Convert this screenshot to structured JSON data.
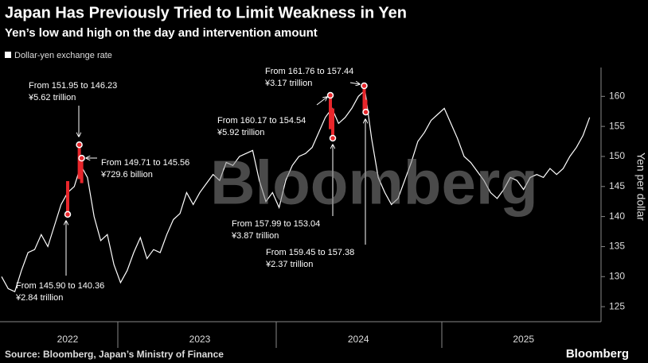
{
  "chart_data": {
    "type": "line",
    "title": "Japan Has Previously Tried to Limit Weakness in Yen",
    "subtitle": "Yen’s low and high on the day and intervention amount",
    "y_axis_label": "Yen per dollar",
    "source": "Source: Bloomberg, Japan’s Ministry of Finance",
    "brand": "Bloomberg",
    "watermark": "Bloomberg",
    "legend": "top-left",
    "categories": [
      null,
      null,
      null,
      null,
      null,
      null,
      null,
      null,
      null,
      null,
      "2022",
      null,
      null,
      null,
      null,
      null,
      null,
      null,
      null,
      null,
      null,
      null,
      null,
      null,
      null,
      null,
      null,
      null,
      null,
      null,
      "2023",
      null,
      null,
      null,
      null,
      null,
      null,
      null,
      null,
      null,
      null,
      null,
      null,
      null,
      null,
      null,
      null,
      null,
      null,
      null,
      null,
      null,
      null,
      null,
      "2024",
      null,
      null,
      null,
      null,
      null,
      null,
      null,
      null,
      null,
      null,
      null,
      null,
      null,
      null,
      null,
      null,
      null,
      null,
      null,
      null,
      null,
      null,
      null,
      null,
      "2025",
      null,
      null,
      null,
      null,
      null,
      null,
      null,
      null,
      null,
      null
    ],
    "series": [
      {
        "name": "Dollar-yen exchange rate",
        "color": "#ffffff",
        "values": [
          130,
          128,
          127.5,
          131,
          134,
          134.5,
          137,
          135,
          138.5,
          142,
          144,
          145,
          148.5,
          146.5,
          140,
          136,
          137,
          132,
          129,
          131,
          134,
          136.5,
          133,
          134.5,
          134,
          137,
          139.5,
          140.5,
          144,
          142,
          144,
          145.5,
          147,
          146,
          149,
          148.5,
          150,
          150.5,
          151,
          146,
          142.5,
          144,
          141.5,
          146,
          148.5,
          150,
          150.5,
          151.5,
          154,
          156.5,
          158,
          155.5,
          156.5,
          158,
          160,
          161,
          153,
          146.5,
          144,
          142,
          143,
          146,
          149,
          152.5,
          154,
          156,
          157,
          158,
          155.5,
          153,
          150,
          149,
          147.5,
          146,
          144,
          143,
          144.5,
          146.5,
          146,
          144.5,
          146.5,
          147,
          146.5,
          148,
          147,
          148,
          150,
          151.5,
          153.5,
          156.5
        ]
      }
    ],
    "interventions": [
      {
        "at": 10,
        "high": 145.9,
        "low": 140.36,
        "color": "#e8262b",
        "text": "From 145.90 to 140.36",
        "amount": "¥2.84 trillion"
      },
      {
        "at": 12,
        "high": 151.95,
        "low": 146.23,
        "color": "#e8262b",
        "text": "From 151.95 to 146.23",
        "amount": "¥5.62 trillion"
      },
      {
        "at": 12,
        "high": 149.71,
        "low": 145.56,
        "color": "#e8262b",
        "text": "From 149.71 to 145.56",
        "amount": "¥729.6 billion"
      },
      {
        "at": 50,
        "high": 160.17,
        "low": 154.54,
        "color": "#e8262b",
        "text": "From 160.17 to 154.54",
        "amount": "¥5.92 trillion"
      },
      {
        "at": 50,
        "high": 157.99,
        "low": 153.04,
        "color": "#e8262b",
        "text": "From 157.99 to 153.04",
        "amount": "¥3.87 trillion"
      },
      {
        "at": 55,
        "high": 161.76,
        "low": 157.44,
        "color": "#e8262b",
        "text": "From 161.76 to 157.44",
        "amount": "¥3.17 trillion"
      },
      {
        "at": 55,
        "high": 159.45,
        "low": 157.38,
        "color": "#e8262b",
        "text": "From 159.45 to 157.38",
        "amount": "¥2.37 trillion"
      }
    ],
    "ylim": [
      122.5,
      164.8
    ],
    "yticks": [
      125,
      130,
      135,
      140,
      145,
      150,
      155,
      160
    ],
    "grid": false
  }
}
